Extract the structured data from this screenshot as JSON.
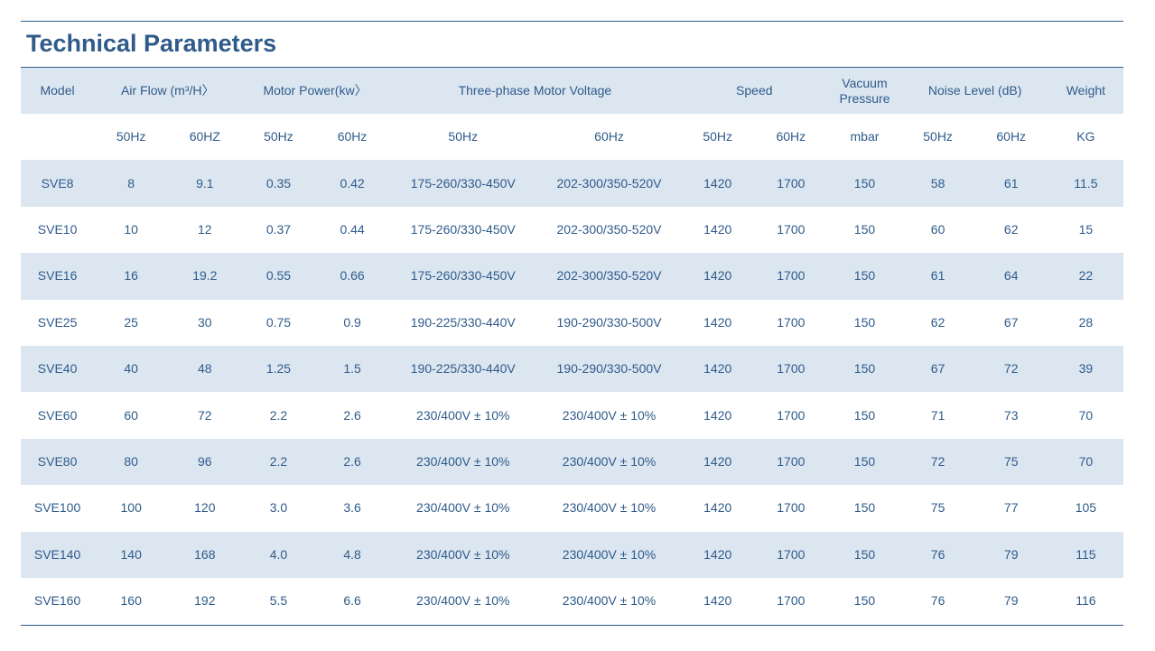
{
  "title": "Technical Parameters",
  "header": {
    "model": "Model",
    "air_flow": "Air Flow (m³/H〉",
    "motor_power": "Motor Power(kw〉",
    "voltage": "Three-phase Motor Voltage",
    "speed": "Speed",
    "vacuum_line1": "Vacuum",
    "vacuum_line2": "Pressure",
    "noise": "Noise Level (dB)",
    "weight": "Weight"
  },
  "subheader": [
    "",
    "50Hz",
    "60HZ",
    "50Hz",
    "60Hz",
    "50Hz",
    "60Hz",
    "50Hz",
    "60Hz",
    "mbar",
    "50Hz",
    "60Hz",
    "KG"
  ],
  "rows": [
    [
      "SVE8",
      "8",
      "9.1",
      "0.35",
      "0.42",
      "175-260/330-450V",
      "202-300/350-520V",
      "1420",
      "1700",
      "150",
      "58",
      "61",
      "11.5"
    ],
    [
      "SVE10",
      "10",
      "12",
      "0.37",
      "0.44",
      "175-260/330-450V",
      "202-300/350-520V",
      "1420",
      "1700",
      "150",
      "60",
      "62",
      "15"
    ],
    [
      "SVE16",
      "16",
      "19.2",
      "0.55",
      "0.66",
      "175-260/330-450V",
      "202-300/350-520V",
      "1420",
      "1700",
      "150",
      "61",
      "64",
      "22"
    ],
    [
      "SVE25",
      "25",
      "30",
      "0.75",
      "0.9",
      "190-225/330-440V",
      "190-290/330-500V",
      "1420",
      "1700",
      "150",
      "62",
      "67",
      "28"
    ],
    [
      "SVE40",
      "40",
      "48",
      "1.25",
      "1.5",
      "190-225/330-440V",
      "190-290/330-500V",
      "1420",
      "1700",
      "150",
      "67",
      "72",
      "39"
    ],
    [
      "SVE60",
      "60",
      "72",
      "2.2",
      "2.6",
      "230/400V ± 10%",
      "230/400V ± 10%",
      "1420",
      "1700",
      "150",
      "71",
      "73",
      "70"
    ],
    [
      "SVE80",
      "80",
      "96",
      "2.2",
      "2.6",
      "230/400V ± 10%",
      "230/400V ± 10%",
      "1420",
      "1700",
      "150",
      "72",
      "75",
      "70"
    ],
    [
      "SVE100",
      "100",
      "120",
      "3.0",
      "3.6",
      "230/400V ± 10%",
      "230/400V ± 10%",
      "1420",
      "1700",
      "150",
      "75",
      "77",
      "105"
    ],
    [
      "SVE140",
      "140",
      "168",
      "4.0",
      "4.8",
      "230/400V ± 10%",
      "230/400V ± 10%",
      "1420",
      "1700",
      "150",
      "76",
      "79",
      "115"
    ],
    [
      "SVE160",
      "160",
      "192",
      "5.5",
      "6.6",
      "230/400V ± 10%",
      "230/400V ± 10%",
      "1420",
      "1700",
      "150",
      "76",
      "79",
      "116"
    ]
  ],
  "colors": {
    "text": "#2f5b8a",
    "row_shade": "#dce6f1",
    "background": "#ffffff"
  }
}
